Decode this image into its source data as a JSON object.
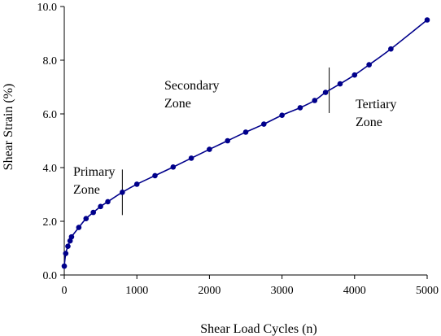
{
  "chart_data": {
    "type": "line",
    "title": "",
    "xlabel": "Shear Load Cycles (n)",
    "ylabel": "Shear Strain (%)",
    "xlim": [
      0,
      5000
    ],
    "ylim": [
      0,
      10
    ],
    "x_ticks": [
      0,
      1000,
      2000,
      3000,
      4000,
      5000
    ],
    "y_ticks": [
      0,
      2,
      4,
      6,
      8,
      10
    ],
    "x_tick_labels": [
      "0",
      "1000",
      "2000",
      "3000",
      "4000",
      "5000"
    ],
    "y_tick_labels": [
      "0.0",
      "2.0",
      "4.0",
      "6.0",
      "8.0",
      "10.0"
    ],
    "grid": false,
    "series": [
      {
        "color": "#00008b",
        "x": [
          0,
          20,
          50,
          80,
          100,
          200,
          300,
          400,
          500,
          600,
          800,
          1000,
          1250,
          1500,
          1750,
          2000,
          2250,
          2500,
          2750,
          3000,
          3250,
          3450,
          3600,
          3800,
          4000,
          4200,
          4500,
          5000
        ],
        "y": [
          0.33,
          0.8,
          1.07,
          1.27,
          1.42,
          1.77,
          2.1,
          2.33,
          2.55,
          2.73,
          3.08,
          3.38,
          3.7,
          4.02,
          4.35,
          4.68,
          5.0,
          5.32,
          5.62,
          5.95,
          6.23,
          6.5,
          6.8,
          7.12,
          7.45,
          7.83,
          8.42,
          9.5
        ]
      }
    ],
    "annotations": [
      {
        "lines": [
          "Primary",
          "Zone"
        ]
      },
      {
        "lines": [
          "Secondary",
          "Zone"
        ]
      },
      {
        "lines": [
          "Tertiary",
          "Zone"
        ]
      }
    ],
    "zone_boundaries_x": [
      800,
      3650
    ]
  }
}
